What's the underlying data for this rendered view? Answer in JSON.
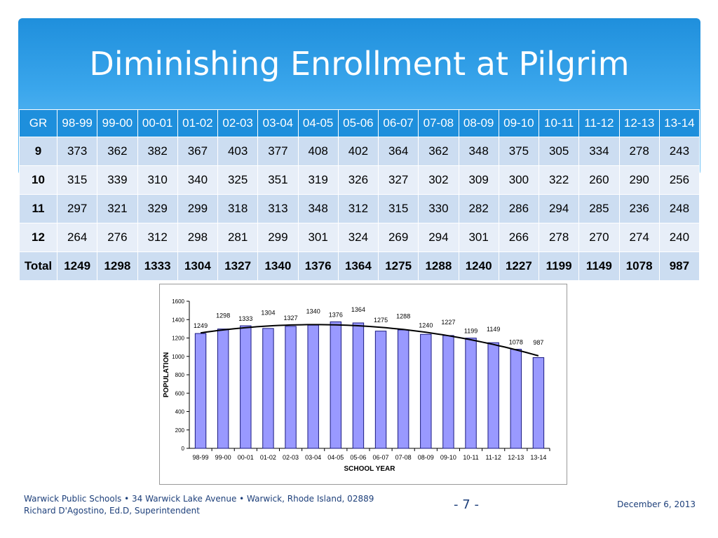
{
  "title": "Diminishing Enrollment at Pilgrim",
  "table": {
    "header_label": "GR",
    "columns": [
      "98-99",
      "99-00",
      "00-01",
      "01-02",
      "02-03",
      "03-04",
      "04-05",
      "05-06",
      "06-07",
      "07-08",
      "08-09",
      "09-10",
      "10-11",
      "11-12",
      "12-13",
      "13-14"
    ],
    "rows": [
      {
        "label": "9",
        "values": [
          "373",
          "362",
          "382",
          "367",
          "403",
          "377",
          "408",
          "402",
          "364",
          "362",
          "348",
          "375",
          "305",
          "334",
          "278",
          "243"
        ]
      },
      {
        "label": "10",
        "values": [
          "315",
          "339",
          "310",
          "340",
          "325",
          "351",
          "319",
          "326",
          "327",
          "302",
          "309",
          "300",
          "322",
          "260",
          "290",
          "256"
        ]
      },
      {
        "label": "11",
        "values": [
          "297",
          "321",
          "329",
          "299",
          "318",
          "313",
          "348",
          "312",
          "315",
          "330",
          "282",
          "286",
          "294",
          "285",
          "236",
          "248"
        ]
      },
      {
        "label": "12",
        "values": [
          "264",
          "276",
          "312",
          "298",
          "281",
          "299",
          "301",
          "324",
          "269",
          "294",
          "301",
          "266",
          "278",
          "270",
          "274",
          "240"
        ]
      },
      {
        "label": "Total",
        "values": [
          "1249",
          "1298",
          "1333",
          "1304",
          "1327",
          "1340",
          "1376",
          "1364",
          "1275",
          "1288",
          "1240",
          "1227",
          "1199",
          "1149",
          "1078",
          "987"
        ]
      }
    ]
  },
  "chart_data": {
    "type": "bar",
    "categories": [
      "98-99",
      "99-00",
      "00-01",
      "01-02",
      "02-03",
      "03-04",
      "04-05",
      "05-06",
      "06-07",
      "07-08",
      "08-09",
      "09-10",
      "10-11",
      "11-12",
      "12-13",
      "13-14"
    ],
    "values": [
      1249,
      1298,
      1333,
      1304,
      1327,
      1340,
      1376,
      1364,
      1275,
      1288,
      1240,
      1227,
      1199,
      1149,
      1078,
      987
    ],
    "xlabel": "SCHOOL YEAR",
    "ylabel": "POPULATION",
    "ylim": [
      0,
      1600
    ],
    "yticks": [
      0,
      200,
      400,
      600,
      800,
      1000,
      1200,
      1400,
      1600
    ],
    "trendline": "polynomial",
    "grid": false,
    "legend": "none",
    "bar_color": "#9999ff",
    "bar_edge_color": "#1a1a80",
    "trend_color": "#000000"
  },
  "footer": {
    "line1": "Warwick Public Schools • 34 Warwick Lake Avenue • Warwick, Rhode Island, 02889",
    "line2": "Richard D'Agostino, Ed.D, Superintendent",
    "page": "- 7 -",
    "date": "December 6, 2013"
  },
  "colors": {
    "header_blue": "#1e8fdc",
    "row_dark": "#ccddf1",
    "row_light": "#e7eef8",
    "footer_text": "#1d3f7a"
  }
}
